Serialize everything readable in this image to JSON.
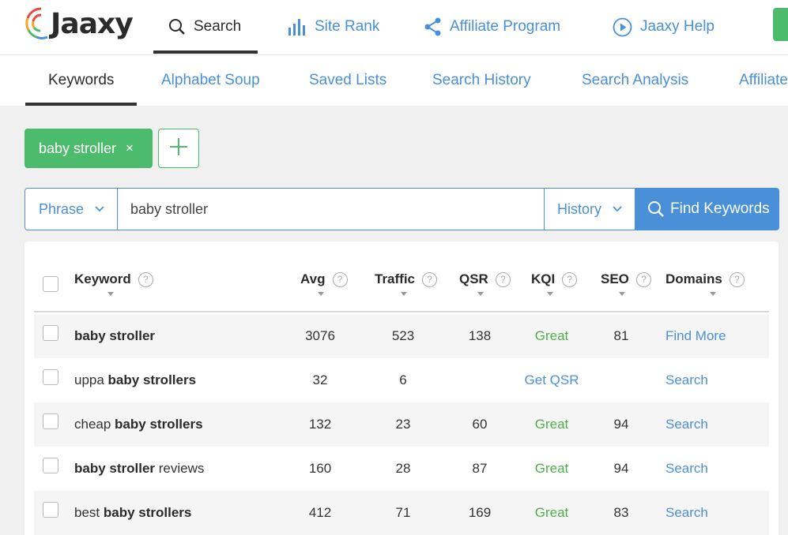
{
  "logo": {
    "text": "Jaaxy"
  },
  "topnav": {
    "items": [
      {
        "label": "Search",
        "icon": "search-icon"
      },
      {
        "label": "Site Rank",
        "icon": "bar-chart-icon"
      },
      {
        "label": "Affiliate Program",
        "icon": "share-icon"
      },
      {
        "label": "Jaaxy Help",
        "icon": "play-circle-icon"
      }
    ],
    "active": "Search"
  },
  "subnav": {
    "items": [
      "Keywords",
      "Alphabet Soup",
      "Saved Lists",
      "Search History",
      "Search Analysis",
      "Affiliate"
    ],
    "active": "Keywords"
  },
  "tags": [
    {
      "label": "baby stroller",
      "remove": "×"
    }
  ],
  "search": {
    "mode": "Phrase",
    "value": "baby stroller",
    "history_label": "History",
    "button_label": "Find Keywords"
  },
  "table": {
    "columns": [
      "Keyword",
      "Avg",
      "Traffic",
      "QSR",
      "KQI",
      "SEO",
      "Domains"
    ],
    "rows": [
      {
        "keyword_pre": "",
        "keyword_bold": "baby stroller",
        "keyword_post": "",
        "avg": "3076",
        "traffic": "523",
        "qsr": "138",
        "kqi": "Great",
        "seo": "81",
        "domains": "Find More"
      },
      {
        "keyword_pre": "uppa ",
        "keyword_bold": "baby strollers",
        "keyword_post": "",
        "avg": "32",
        "traffic": "6",
        "qsr": "",
        "kqi": "Get QSR",
        "seo": "",
        "domains": "Search"
      },
      {
        "keyword_pre": "cheap ",
        "keyword_bold": "baby strollers",
        "keyword_post": "",
        "avg": "132",
        "traffic": "23",
        "qsr": "60",
        "kqi": "Great",
        "seo": "94",
        "domains": "Search"
      },
      {
        "keyword_pre": "",
        "keyword_bold": "baby stroller",
        "keyword_post": " reviews",
        "avg": "160",
        "traffic": "28",
        "qsr": "87",
        "kqi": "Great",
        "seo": "94",
        "domains": "Search"
      },
      {
        "keyword_pre": "best ",
        "keyword_bold": "baby strollers",
        "keyword_post": "",
        "avg": "412",
        "traffic": "71",
        "qsr": "169",
        "kqi": "Great",
        "seo": "83",
        "domains": "Search"
      }
    ]
  },
  "colors": {
    "accent": "#4a90d9",
    "green": "#4cbb6c",
    "great": "#4cae4c"
  }
}
